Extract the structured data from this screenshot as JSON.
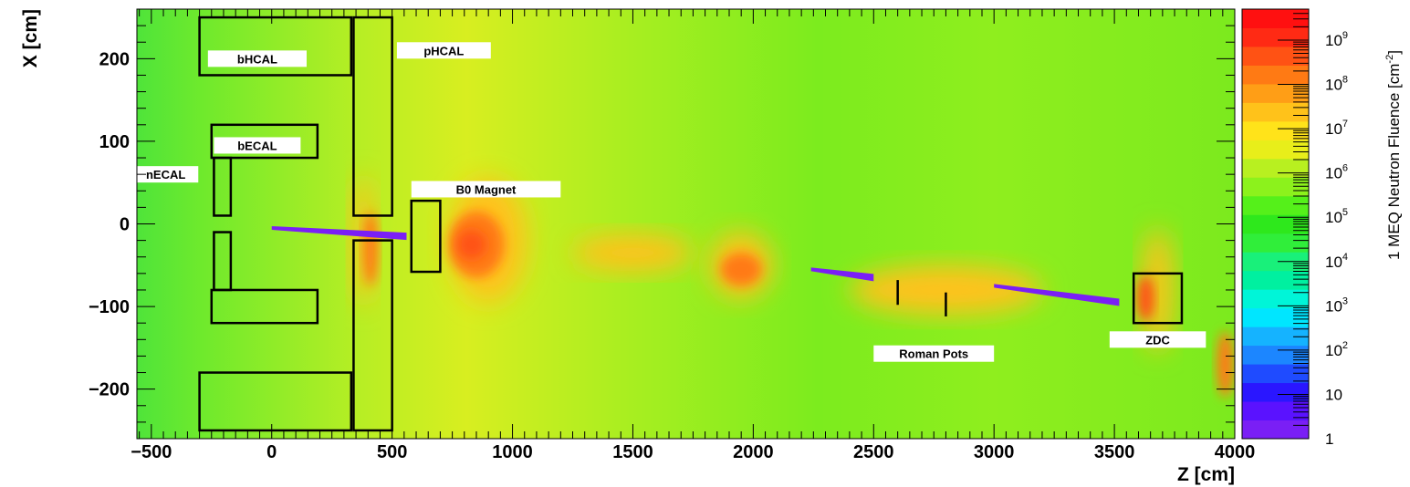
{
  "chart_data": {
    "type": "heatmap",
    "xlabel": "Z [cm]",
    "ylabel": "X [cm]",
    "xlim": [
      -560,
      4000
    ],
    "ylim": [
      -260,
      260
    ],
    "x_ticks": [
      -500,
      0,
      500,
      1000,
      1500,
      2000,
      2500,
      3000,
      3500,
      4000
    ],
    "x_tick_labels": [
      "−500",
      "0",
      "500",
      "1000",
      "1500",
      "2000",
      "2500",
      "3000",
      "3500",
      "4000"
    ],
    "y_ticks": [
      200,
      100,
      0,
      -100,
      -200
    ],
    "y_tick_labels": [
      "200",
      "100",
      "0",
      "−100",
      "−200"
    ],
    "colorbar": {
      "title": "1 MEQ Neutron Fluence [cm",
      "title_exponent": "-2",
      "title_suffix": "]",
      "scale": "log",
      "range": [
        1,
        5000000000.0
      ],
      "tick_labels": [
        {
          "base": "10",
          "exp": "9",
          "value": 1000000000.0
        },
        {
          "base": "10",
          "exp": "8",
          "value": 100000000.0
        },
        {
          "base": "10",
          "exp": "7",
          "value": 10000000.0
        },
        {
          "base": "10",
          "exp": "6",
          "value": 1000000.0
        },
        {
          "base": "10",
          "exp": "5",
          "value": 100000.0
        },
        {
          "base": "10",
          "exp": "4",
          "value": 10000.0
        },
        {
          "base": "10",
          "exp": "3",
          "value": 1000.0
        },
        {
          "base": "10",
          "exp": "2",
          "value": 100.0
        },
        {
          "base": "10",
          "exp": "",
          "value": 10
        },
        {
          "base": "1",
          "exp": "",
          "value": 1
        }
      ],
      "colors": [
        "#7a1ff5",
        "#5a12ff",
        "#2a16ff",
        "#1f4bff",
        "#1c86ff",
        "#15b3ff",
        "#00e6ff",
        "#00f5d8",
        "#00f0a0",
        "#19f07a",
        "#30ee3a",
        "#2ee81c",
        "#55f01a",
        "#8cf21c",
        "#b8f020",
        "#e8ee1a",
        "#ffe31a",
        "#ffc21a",
        "#ff9e16",
        "#ff7a14",
        "#ff5214",
        "#ff2a14",
        "#ff1010"
      ]
    },
    "fluence_blobs": [
      {
        "z": 380,
        "x": -20,
        "dz": 90,
        "dx": 160,
        "log10": 7.6
      },
      {
        "z": 410,
        "x": -30,
        "dz": 60,
        "dx": 90,
        "log10": 8.5
      },
      {
        "z": 900,
        "x": -20,
        "dz": 320,
        "dx": 150,
        "log10": 7.6
      },
      {
        "z": 850,
        "x": -25,
        "dz": 230,
        "dx": 80,
        "log10": 8.3
      },
      {
        "z": 830,
        "x": -25,
        "dz": 120,
        "dx": 35,
        "log10": 8.8
      },
      {
        "z": 1500,
        "x": -35,
        "dz": 500,
        "dx": 45,
        "log10": 7.5
      },
      {
        "z": 1950,
        "x": -50,
        "dz": 260,
        "dx": 80,
        "log10": 7.6
      },
      {
        "z": 1950,
        "x": -55,
        "dz": 170,
        "dx": 40,
        "log10": 8.4
      },
      {
        "z": 2800,
        "x": -80,
        "dz": 800,
        "dx": 60,
        "log10": 7.3
      },
      {
        "z": 3680,
        "x": -80,
        "dz": 130,
        "dx": 150,
        "log10": 7.7
      },
      {
        "z": 3630,
        "x": -90,
        "dz": 70,
        "dx": 55,
        "log10": 8.8
      },
      {
        "z": 3960,
        "x": -170,
        "dz": 70,
        "dx": 80,
        "log10": 8.3
      }
    ],
    "low_fluence_regions": [
      {
        "z": [
          0,
          560
        ],
        "x": [
          -5,
          -15
        ],
        "log10": 0
      },
      {
        "z": [
          2240,
          2500
        ],
        "x": [
          -55,
          -65
        ],
        "log10": 0
      },
      {
        "z": [
          3000,
          3520
        ],
        "x": [
          -75,
          -95
        ],
        "log10": 0
      }
    ],
    "detectors": [
      {
        "name": "bHCAL",
        "boxes": [
          [
            -300,
            180,
            330,
            250
          ],
          [
            -300,
            -250,
            330,
            -180
          ]
        ]
      },
      {
        "name": "pHCAL",
        "boxes": [
          [
            340,
            10,
            500,
            250
          ],
          [
            340,
            -250,
            500,
            -20
          ]
        ]
      },
      {
        "name": "bECAL",
        "boxes": [
          [
            -250,
            80,
            190,
            120
          ],
          [
            -250,
            -120,
            190,
            -80
          ]
        ]
      },
      {
        "name": "nECAL",
        "boxes": [
          [
            -240,
            10,
            -170,
            80
          ],
          [
            -240,
            -80,
            -170,
            -10
          ]
        ]
      },
      {
        "name": "B0 Magnet",
        "boxes": [
          [
            580,
            -58,
            700,
            28
          ]
        ]
      },
      {
        "name": "ZDC",
        "boxes": [
          [
            3580,
            -120,
            3780,
            -60
          ]
        ]
      },
      {
        "name": "Roman Pots",
        "lines": [
          [
            2600,
            -68,
            -98
          ],
          [
            2800,
            -83,
            -112
          ]
        ]
      }
    ],
    "labels": [
      {
        "text": "bHCAL",
        "z": -265,
        "x": 200,
        "w": 410,
        "h": 20
      },
      {
        "text": "pHCAL",
        "z": 520,
        "x": 210,
        "w": 390,
        "h": 20
      },
      {
        "text": "bECAL",
        "z": -240,
        "x": 95,
        "w": 360,
        "h": 20
      },
      {
        "text": "nECAL",
        "z": -575,
        "x": 60,
        "w": 270,
        "h": 20
      },
      {
        "text": "B0 Magnet",
        "z": 580,
        "x": 42,
        "w": 620,
        "h": 20
      },
      {
        "text": "Roman Pots",
        "z": 2500,
        "x": -157,
        "w": 500,
        "h": 20
      },
      {
        "text": "ZDC",
        "z": 3480,
        "x": -140,
        "w": 400,
        "h": 20
      }
    ]
  }
}
